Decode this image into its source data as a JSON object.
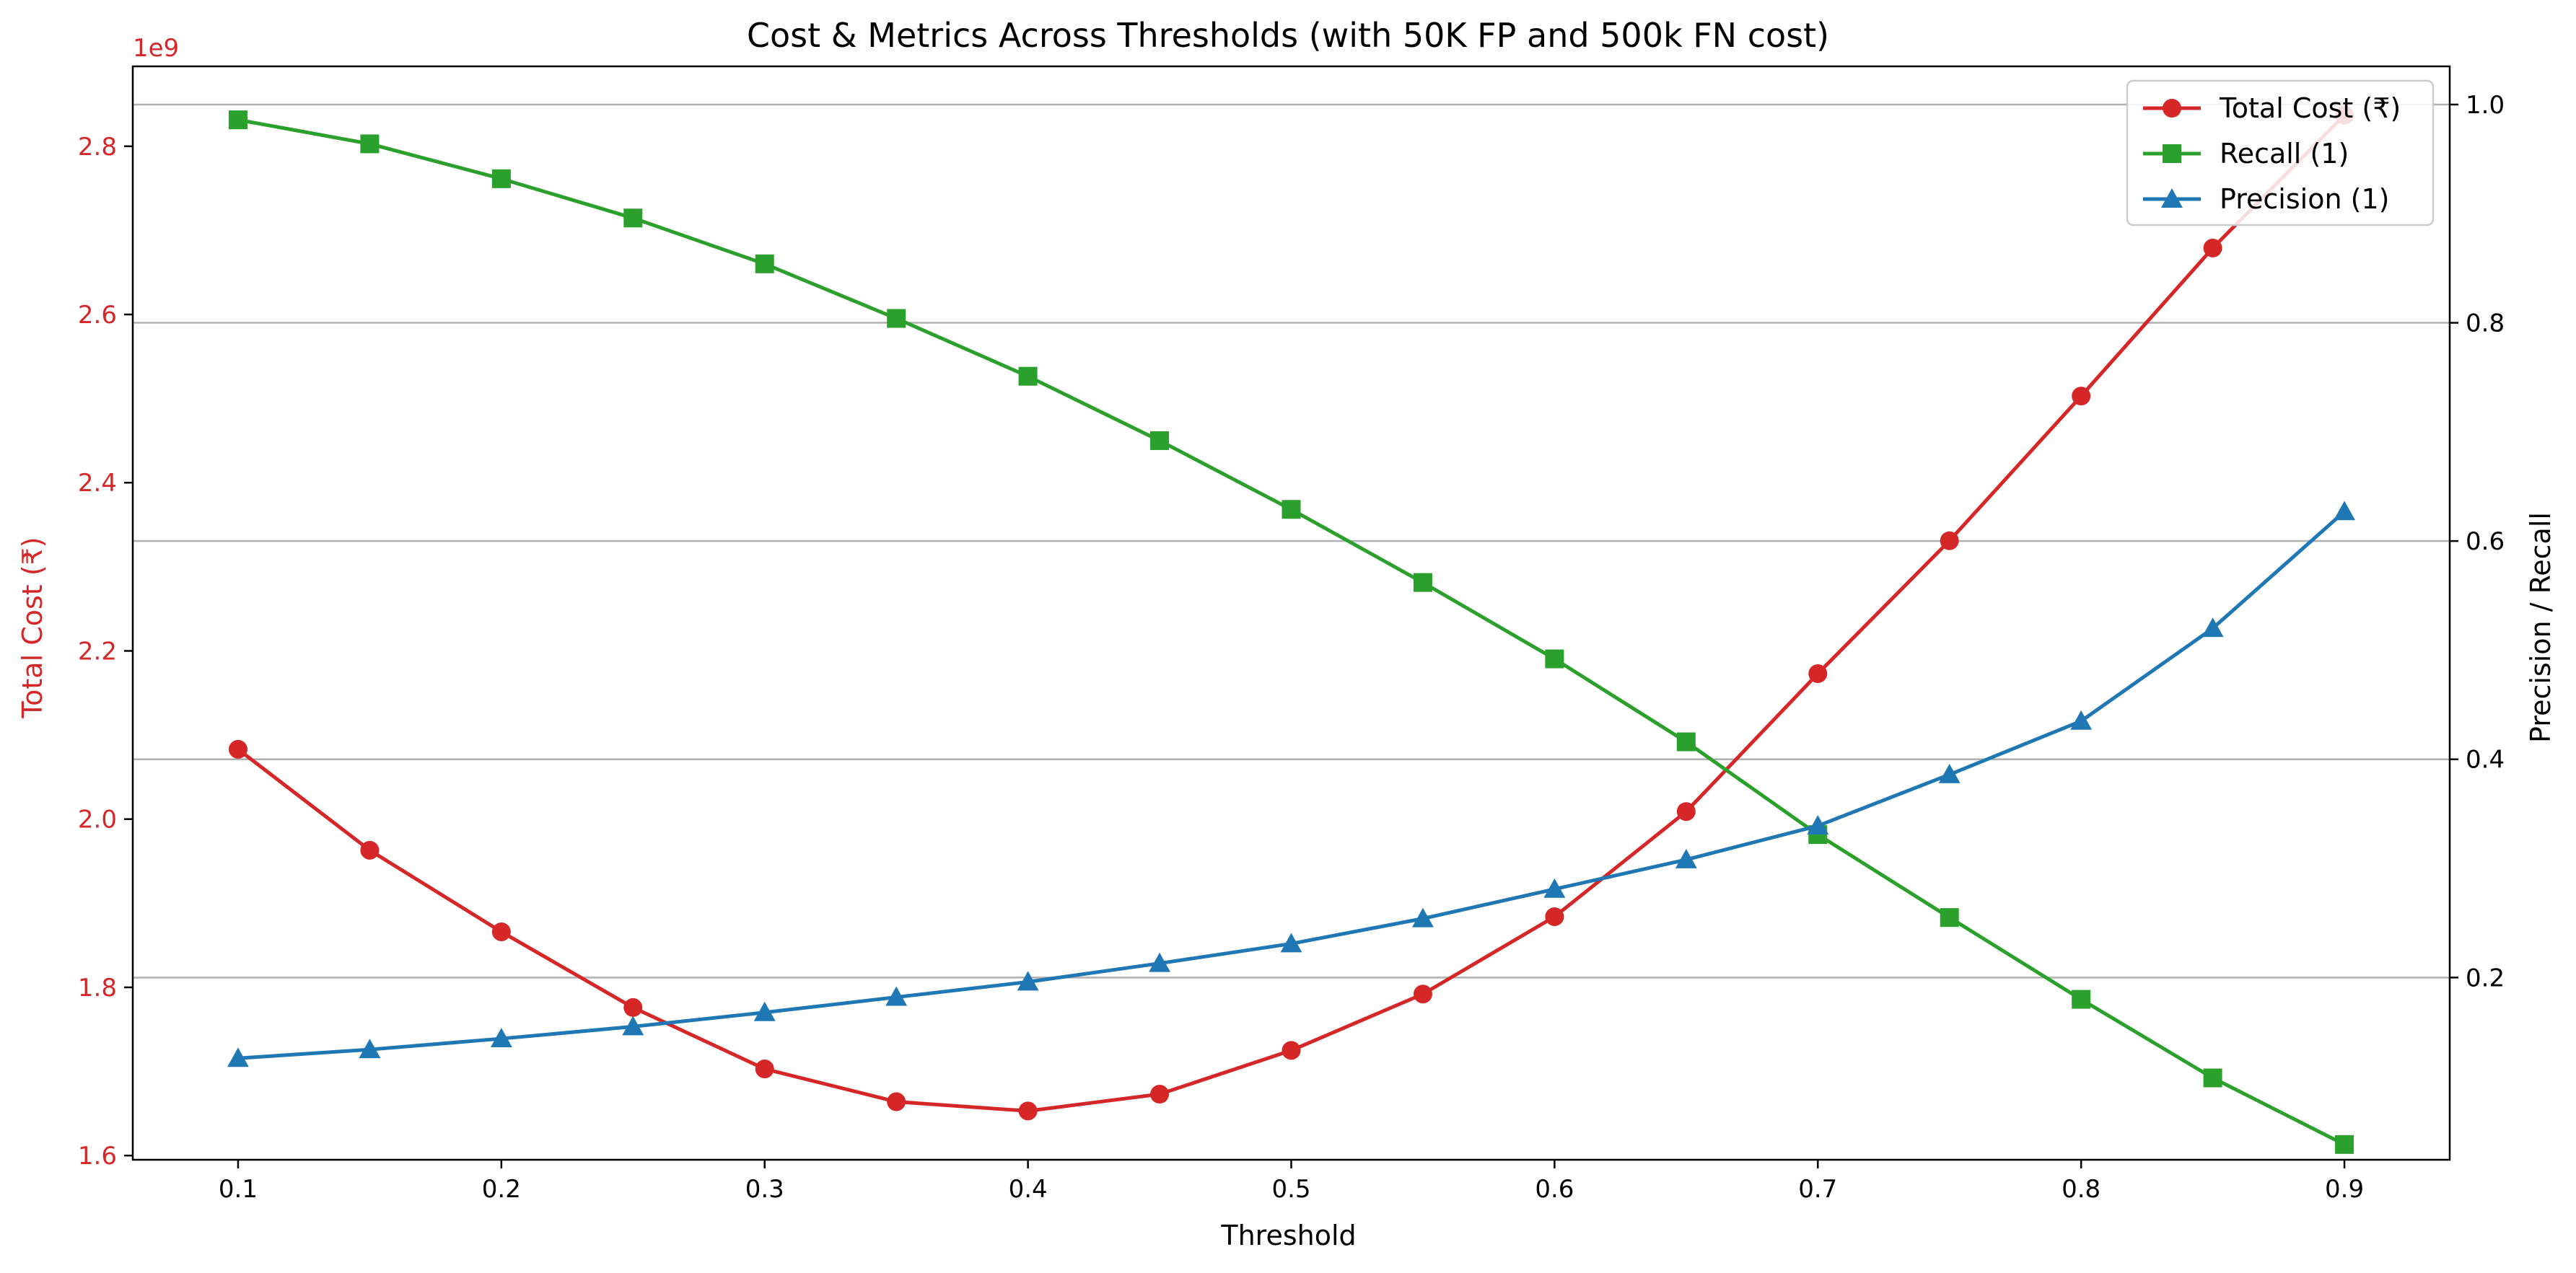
{
  "chart_data": {
    "type": "line",
    "title": "Cost & Metrics Across Thresholds (with 50K FP and 500k FN cost)",
    "xlabel": "Threshold",
    "ylabel_left": "Total Cost (₹)",
    "ylabel_right": "Precision / Recall",
    "left_axis_offset_label": "1e9",
    "x": [
      0.1,
      0.15,
      0.2,
      0.25,
      0.3,
      0.35,
      0.4,
      0.45,
      0.5,
      0.55,
      0.6,
      0.65,
      0.7,
      0.75,
      0.8,
      0.85,
      0.9
    ],
    "xlim": [
      0.06,
      0.94
    ],
    "xticks": [
      0.1,
      0.2,
      0.3,
      0.4,
      0.5,
      0.6,
      0.7,
      0.8,
      0.9
    ],
    "xtick_labels": [
      "0.1",
      "0.2",
      "0.3",
      "0.4",
      "0.5",
      "0.6",
      "0.7",
      "0.8",
      "0.9"
    ],
    "ylim_left": [
      1.595,
      2.895
    ],
    "yticks_left": [
      1.6,
      1.8,
      2.0,
      2.2,
      2.4,
      2.6,
      2.8
    ],
    "ytick_labels_left": [
      "1.6",
      "1.8",
      "2.0",
      "2.2",
      "2.4",
      "2.6",
      "2.8"
    ],
    "ylim_right": [
      0.033,
      1.035
    ],
    "yticks_right": [
      0.2,
      0.4,
      0.6,
      0.8,
      1.0
    ],
    "ytick_labels_right": [
      "0.2",
      "0.4",
      "0.6",
      "0.8",
      "1.0"
    ],
    "grid": "horizontal lines at right-axis ticks",
    "legend_position": "top-right",
    "series": [
      {
        "name": "Total Cost (₹)",
        "axis": "left",
        "color": "#d62728",
        "marker": "circle",
        "values": [
          2.083,
          1.963,
          1.866,
          1.776,
          1.703,
          1.664,
          1.653,
          1.673,
          1.725,
          1.792,
          1.884,
          2.009,
          2.173,
          2.331,
          2.503,
          2.679,
          2.837
        ]
      },
      {
        "name": "Recall (1)",
        "axis": "right",
        "color": "#2ca02c",
        "marker": "square",
        "values": [
          0.986,
          0.964,
          0.932,
          0.896,
          0.854,
          0.804,
          0.751,
          0.692,
          0.629,
          0.562,
          0.492,
          0.416,
          0.331,
          0.255,
          0.18,
          0.108,
          0.047
        ]
      },
      {
        "name": "Precision (1)",
        "axis": "right",
        "color": "#1f77b4",
        "marker": "triangle",
        "values": [
          0.126,
          0.134,
          0.144,
          0.155,
          0.168,
          0.182,
          0.196,
          0.213,
          0.231,
          0.254,
          0.281,
          0.308,
          0.339,
          0.386,
          0.435,
          0.52,
          0.627
        ]
      }
    ]
  }
}
